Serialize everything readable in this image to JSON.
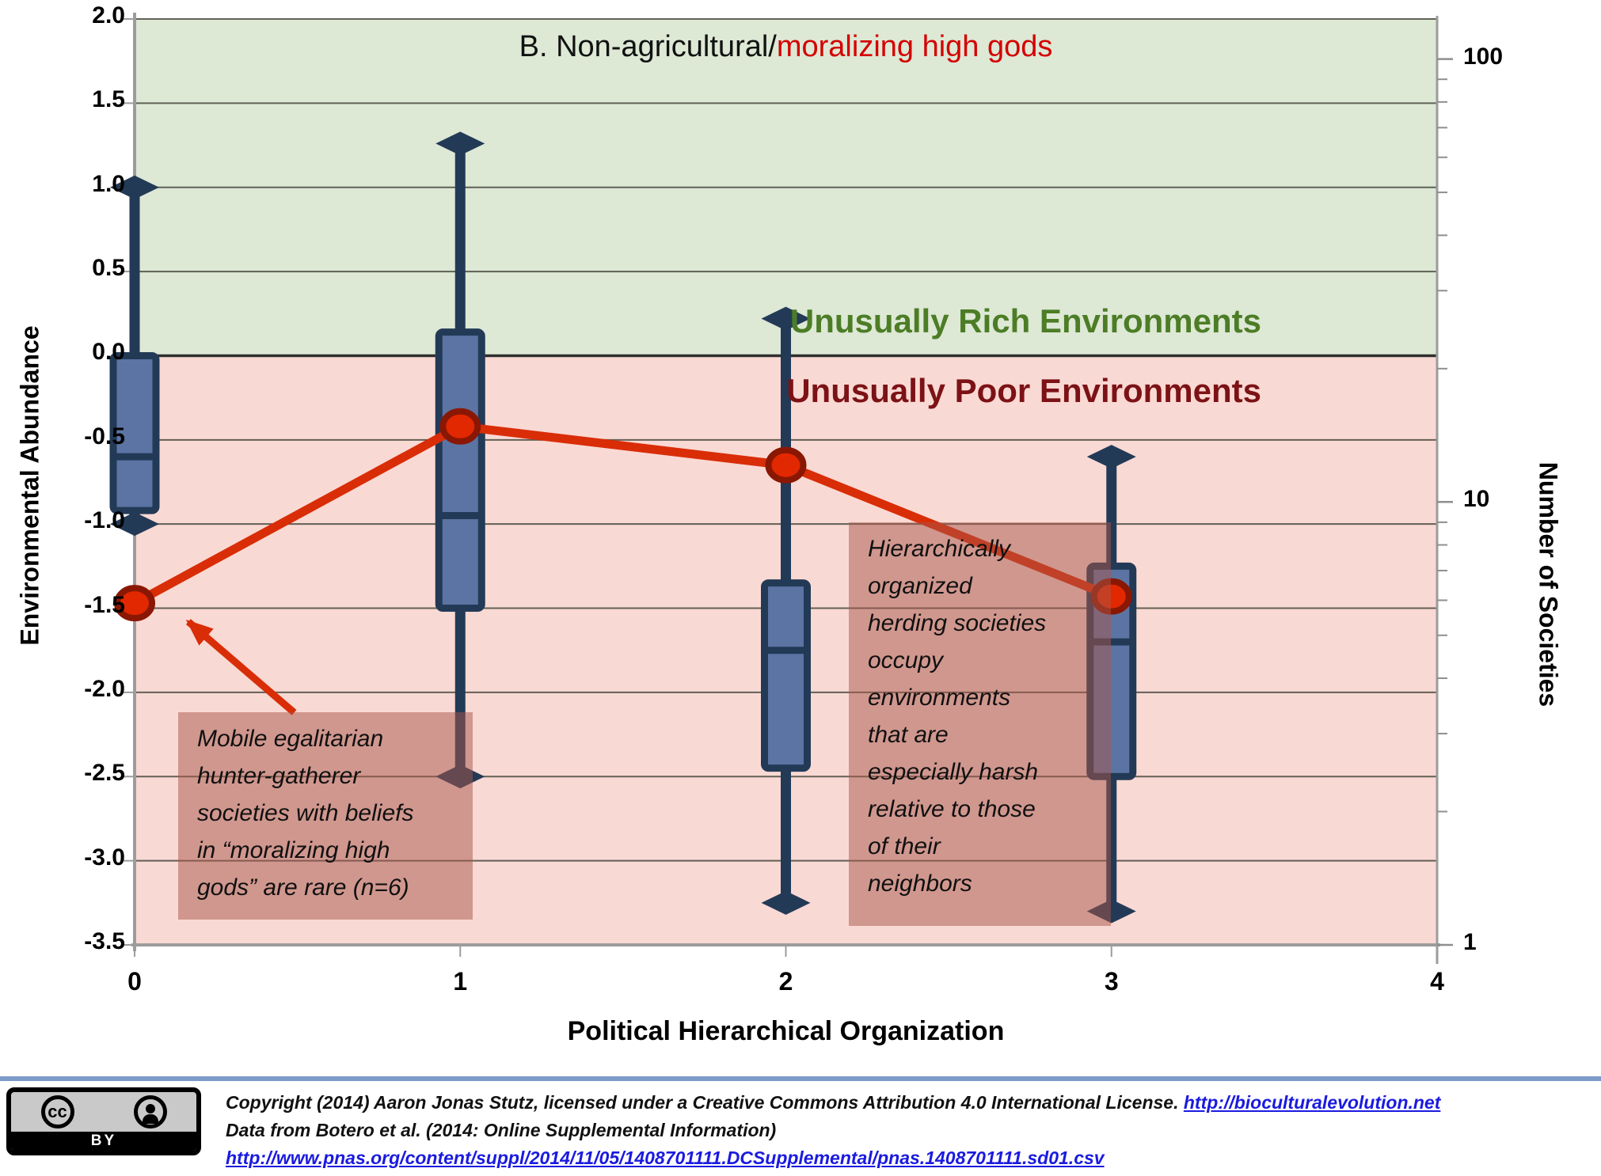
{
  "title": {
    "prefix": "B. Non-agricultural/",
    "highlight": "moralizing high gods"
  },
  "chart_data": {
    "type": "box+line",
    "xlabel": "Political Hierarchical Organization",
    "ylabel_left": "Environmental Abundance",
    "ylabel_right": "Number of Societies",
    "xlim": [
      0,
      4
    ],
    "ylim": [
      -3.5,
      2.0
    ],
    "grid": true,
    "x_tick_labels": [
      "0",
      "1",
      "2",
      "3",
      "4"
    ],
    "y_tick_labels_left": [
      "2.0",
      "1.5",
      "1.0",
      "0.5",
      "0.0",
      "-0.5",
      "-1.0",
      "-1.5",
      "-2.0",
      "-2.5",
      "-3.0",
      "-3.5"
    ],
    "right_axis": {
      "scale": "log",
      "major_ticks": [
        100,
        10,
        1
      ],
      "minor_ticks": [
        2,
        3,
        4,
        5,
        6,
        7,
        8,
        9,
        20,
        30,
        40,
        50,
        60,
        70,
        80,
        90
      ]
    },
    "regions": [
      {
        "label": "Unusually Rich Environments",
        "range": [
          0,
          2.0
        ],
        "bg": "#dde8d5",
        "label_color": "#4c7d26"
      },
      {
        "label": "Unusually Poor Environments",
        "range": [
          -3.5,
          0
        ],
        "bg": "#f9d9d3",
        "label_color": "#7c1216"
      }
    ],
    "boxes": [
      {
        "x": 0,
        "whisker_low": -1.0,
        "q1": -0.92,
        "median": -0.6,
        "q3": 0.0,
        "whisker_high": 1.0
      },
      {
        "x": 1,
        "whisker_low": -2.5,
        "q1": -1.5,
        "median": -0.95,
        "q3": 0.14,
        "whisker_high": 1.26
      },
      {
        "x": 2,
        "whisker_low": -3.25,
        "q1": -2.45,
        "median": -1.75,
        "q3": -1.35,
        "whisker_high": 0.22
      },
      {
        "x": 3,
        "whisker_low": -3.3,
        "q1": -2.5,
        "median": -1.7,
        "q3": -1.25,
        "whisker_high": -0.6
      }
    ],
    "line_series": {
      "x": [
        0,
        1,
        2,
        3
      ],
      "y": [
        -1.47,
        -0.42,
        -0.65,
        -1.43
      ],
      "color": "#d92d07",
      "marker_fill": "#e22800",
      "marker_stroke": "#8a1703"
    },
    "colors": {
      "box_fill": "#5c74a3",
      "box_stroke": "#233a57",
      "grid": "#4a4a41",
      "zero_line": "#2f2f2f",
      "axis": "#9c9c9c"
    },
    "annotations": [
      {
        "lines": [
          "Mobile egalitarian",
          "hunter-gatherer",
          "societies with beliefs",
          "in “moralizing high",
          "gods” are rare (n=6)"
        ],
        "arrow": {
          "from_x": 0.49,
          "from_y": -2.12,
          "to_x": 0.165,
          "to_y": -1.58
        }
      },
      {
        "lines": [
          "Hierarchically",
          "organized",
          "herding societies",
          "occupy",
          "environments",
          "that are",
          "especially harsh",
          "relative to those",
          "of their",
          "neighbors"
        ]
      }
    ]
  },
  "footer": {
    "line1_text": "Copyright (2014) Aaron Jonas Stutz, licensed under a Creative Commons Attribution 4.0 International License. ",
    "line1_link": "http://bioculturalevolution.net",
    "line2": "Data from Botero et al. (2014: Online Supplemental Information)",
    "line3_link": "http://www.pnas.org/content/suppl/2014/11/05/1408701111.DCSupplemental/pnas.1408701111.sd01.csv",
    "cc_label": "cc",
    "by_label": "BY"
  }
}
